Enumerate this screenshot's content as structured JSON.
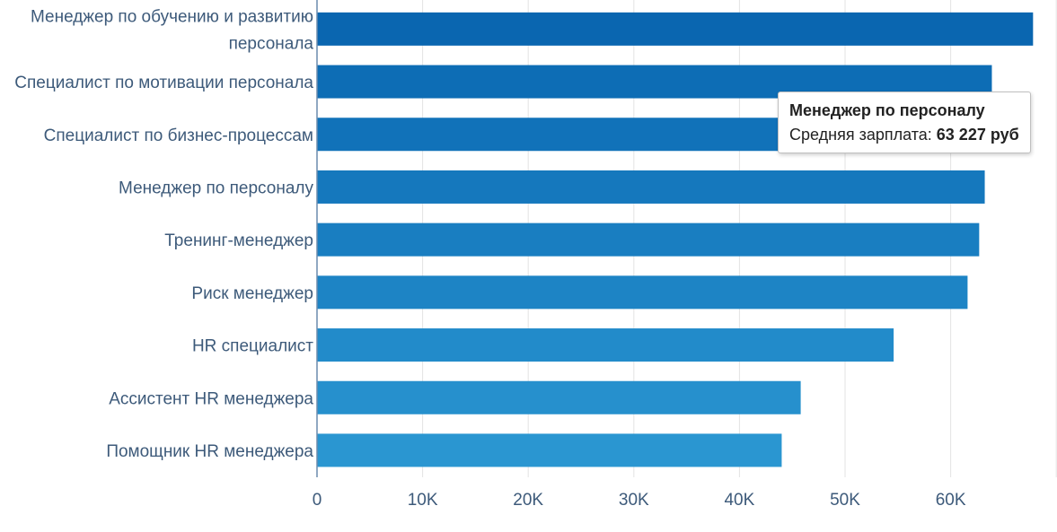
{
  "chart_data": {
    "type": "bar",
    "orientation": "horizontal",
    "categories": [
      [
        "Менеджер по обучению и развитию",
        "персонала"
      ],
      [
        "Специалист по мотивации персонала"
      ],
      [
        "Специалист по бизнес-процессам"
      ],
      [
        "Менеджер по персоналу"
      ],
      [
        "Тренинг-менеджер"
      ],
      [
        "Риск менеджер"
      ],
      [
        "HR специалист"
      ],
      [
        "Ассистент HR менеджера"
      ],
      [
        "Помощник HR менеджера"
      ]
    ],
    "values": [
      67800,
      63900,
      61000,
      63227,
      62700,
      61600,
      54600,
      45800,
      44000
    ],
    "xlim": [
      0,
      70000
    ],
    "xticks": [
      0,
      10000,
      20000,
      30000,
      40000,
      50000,
      60000
    ],
    "xtick_labels": [
      "0",
      "10K",
      "20K",
      "30K",
      "40K",
      "50K",
      "60K"
    ],
    "grid": "vertical",
    "bar_colors": [
      "#0a66b0",
      "#0d6db5",
      "#1172b9",
      "#1578bd",
      "#197ec1",
      "#1d84c5",
      "#228bca",
      "#2690cd",
      "#2a96d1"
    ]
  },
  "tooltip": {
    "title": "Менеджер по персоналу",
    "label": "Средняя зарплата:",
    "value": "63 227 руб"
  }
}
